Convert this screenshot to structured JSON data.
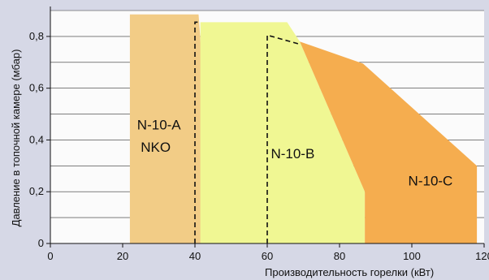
{
  "chart_data": {
    "type": "area",
    "xlabel": "Производительность горелки (кВт)",
    "ylabel": "Давление в топочной камере (мбар)",
    "xlim": [
      0,
      120
    ],
    "ylim": [
      0,
      0.9
    ],
    "x_ticks": [
      0,
      20,
      40,
      60,
      80,
      100,
      120
    ],
    "x_tick_labels": [
      "0",
      "20",
      "40",
      "60",
      "80",
      "100",
      "120"
    ],
    "y_ticks": [
      0,
      0.2,
      0.4,
      0.6,
      0.8
    ],
    "y_tick_labels": [
      "0",
      "0,2",
      "0,4",
      "0,6",
      "0,8"
    ],
    "grid": "horizontal",
    "regions": [
      {
        "labels": [
          "N-10-A",
          "NKO"
        ],
        "color": "#f2cc86",
        "points": [
          [
            22,
            0
          ],
          [
            22,
            0.885
          ],
          [
            41,
            0.885
          ],
          [
            44,
            0.3
          ],
          [
            44,
            0
          ]
        ],
        "label_pos": [
          [
            24,
            0.44
          ],
          [
            25,
            0.355
          ]
        ]
      },
      {
        "labels": [
          "N-10-B"
        ],
        "color": "#f0f793",
        "points": [
          [
            41.5,
            0
          ],
          [
            41.5,
            0.855
          ],
          [
            65.5,
            0.855
          ],
          [
            69,
            0.78
          ],
          [
            87,
            0.2
          ],
          [
            87,
            0
          ]
        ],
        "label_pos": [
          [
            61,
            0.33
          ]
        ]
      },
      {
        "labels": [
          "N-10-C"
        ],
        "color": "#f5ad4f",
        "points": [
          [
            69,
            0.78
          ],
          [
            86.5,
            0.695
          ],
          [
            118,
            0.3
          ],
          [
            118,
            0
          ],
          [
            87,
            0
          ],
          [
            87,
            0.2
          ]
        ],
        "label_pos": [
          [
            99,
            0.225
          ]
        ]
      }
    ],
    "dashed_lines": [
      {
        "points": [
          [
            40,
            0
          ],
          [
            40,
            0.855
          ],
          [
            41.5,
            0.855
          ]
        ]
      },
      {
        "points": [
          [
            60,
            0
          ],
          [
            60,
            0.805
          ],
          [
            69,
            0.77
          ]
        ]
      }
    ]
  }
}
